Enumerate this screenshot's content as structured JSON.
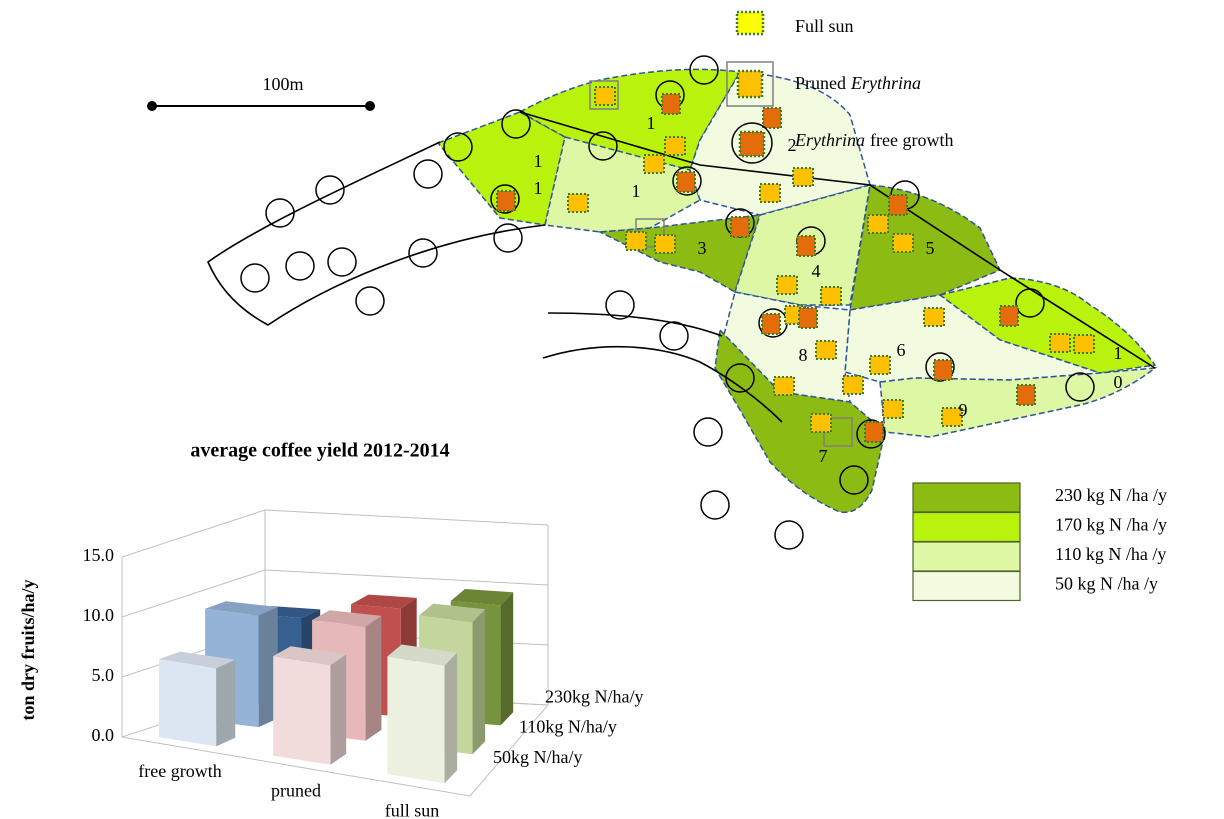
{
  "map": {
    "scale_label": "100m",
    "tree_legend": [
      {
        "parts": [
          {
            "text": "Full sun"
          }
        ]
      },
      {
        "parts": [
          {
            "text": "Pruned"
          },
          {
            "text": "Erythrina",
            "italic": true
          }
        ]
      },
      {
        "parts": [
          {
            "text": "Erythrina",
            "italic": true
          },
          {
            "text": "free growth"
          }
        ]
      }
    ],
    "fertilizer_legend": [
      {
        "label": "230 kg N /ha /y",
        "color": "#8cbb13"
      },
      {
        "label": "170 kg N /ha /y",
        "color": "#b9f20c"
      },
      {
        "label": "110 kg N /ha /y",
        "color": "#def7a4"
      },
      {
        "label": "50 kg N /ha /y",
        "color": "#f2fbe0"
      }
    ],
    "plot_labels": [
      "1",
      "1",
      "1",
      "1",
      "2",
      "3",
      "4",
      "5",
      "6",
      "7",
      "8",
      "9",
      "1",
      "0"
    ]
  },
  "chart_data": {
    "type": "bar",
    "title": "average  coffee yield 2012-2014",
    "y_label": "ton dry fruits/ha/y",
    "categories": [
      "free growth",
      "pruned",
      "full sun"
    ],
    "series": [
      {
        "name": "50kg N/ha/y",
        "colors": [
          "#dce6f2",
          "#f2dcdb",
          "#ebf1de"
        ],
        "values": [
          6.5,
          8.3,
          9.8
        ]
      },
      {
        "name": "110kg N/ha/y",
        "colors": [
          "#95b3d7",
          "#e6b9b8",
          "#c3d69b"
        ],
        "values": [
          9.3,
          9.5,
          11.0
        ]
      },
      {
        "name": "230kg N/ha/y",
        "colors": [
          "#376092",
          "#c0504d",
          "#77933c"
        ],
        "values": [
          7.5,
          9.0,
          10.0
        ]
      }
    ],
    "ylim": [
      0,
      15
    ],
    "yticks": [
      {
        "value": 0,
        "label": "0.0"
      },
      {
        "value": 5,
        "label": "5.0"
      },
      {
        "value": 10,
        "label": "10.0"
      },
      {
        "value": 15,
        "label": "15.0"
      }
    ],
    "grid": true
  }
}
